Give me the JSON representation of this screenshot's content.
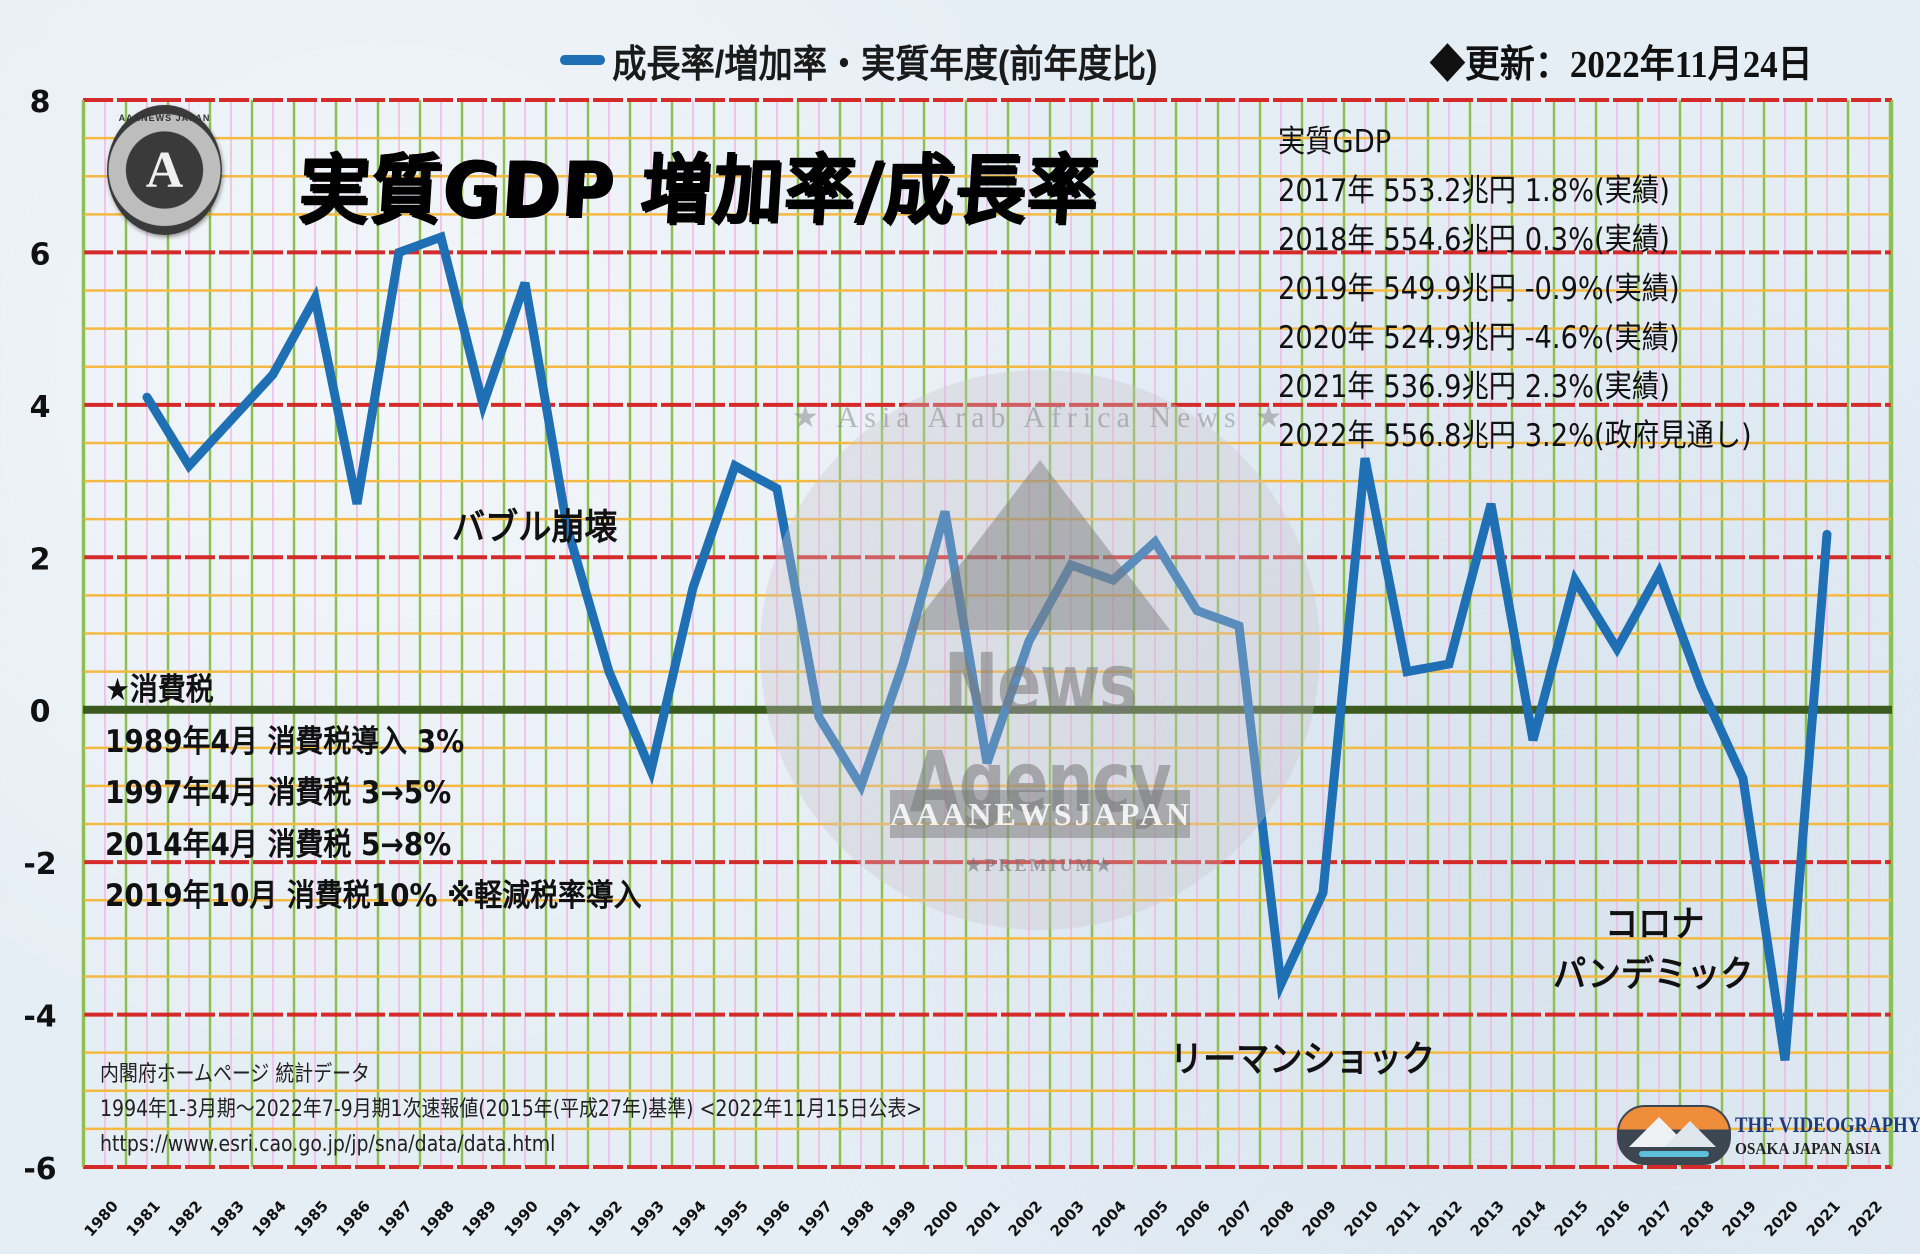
{
  "header": {
    "legend_label": "成長率/増加率・実質年度(前年度比)",
    "legend_color": "#1f6fb5",
    "updated": "◆更新：2022年11月24日"
  },
  "title": "実質GDP 増加率/成長率",
  "logo": {
    "name": "AAANEWS JAPAN",
    "letter": "A",
    "ring_text": "AAANEWS JAPAN"
  },
  "gdp_box": {
    "heading": "実質GDP",
    "rows": [
      "2017年 553.2兆円 1.8%(実績)",
      "2018年 554.6兆円 0.3%(実績)",
      "2019年 549.9兆円 -0.9%(実績)",
      "2020年 524.9兆円 -4.6%(実績)",
      "2021年 536.9兆円 2.3%(実績)",
      "2022年 556.8兆円 3.2%(政府見通し)"
    ]
  },
  "tax_box": {
    "heading": "★消費税",
    "rows": [
      "1989年4月 消費税導入 3%",
      "1997年4月 消費税 3→5%",
      "2014年4月 消費税 5→8%",
      "2019年10月 消費税10% ※軽減税率導入"
    ]
  },
  "annotations": {
    "bubble": "バブル崩壊",
    "lehman": "リーマンショック",
    "corona_1": "コロナ",
    "corona_2": "パンデミック"
  },
  "source": {
    "line1": "内閣府ホームページ 統計データ",
    "line2": "1994年1-3月期～2022年7-9月期1次速報値(2015年(平成27年)基準) <2022年11月15日公表>",
    "line3": "https://www.esri.cao.go.jp/jp/sna/data/data.html"
  },
  "watermark": {
    "arc_text": "★ Asia Arab Africa News ★",
    "main": "News Agency",
    "ribbon": "AAANEWSJAPAN",
    "premium": "★PREMIUM★"
  },
  "videography": {
    "line1": "THE VIDEOGRAPHY",
    "line2": "OSAKA JAPAN ASIA"
  },
  "colors": {
    "series": "#1f6fb5",
    "major_grid": "#d42a2a",
    "minor_grid_h": "#f4b942",
    "vertical_major": "#8cc152",
    "vertical_minor": "#f0b6e6",
    "zero_line": "#3a5a1e"
  },
  "chart_data": {
    "type": "line",
    "title": "実質GDP 増加率/成長率",
    "legend": [
      "成長率/増加率・実質年度(前年度比)"
    ],
    "xlabel": "",
    "ylabel": "",
    "ylim": [
      -6,
      8
    ],
    "yticks": [
      8,
      6,
      4,
      2,
      0,
      -2,
      -4,
      -6
    ],
    "grid": true,
    "x_tick_labels": [
      "1980",
      "1981",
      "1982",
      "1983",
      "1984",
      "1985",
      "1986",
      "1987",
      "1988",
      "1989",
      "1990",
      "1991",
      "1992",
      "1993",
      "1994",
      "1995",
      "1996",
      "1997",
      "1998",
      "1999",
      "2000",
      "2001",
      "2002",
      "2003",
      "2004",
      "2005",
      "2006",
      "2007",
      "2008",
      "2009",
      "2010",
      "2011",
      "2012",
      "2013",
      "2014",
      "2015",
      "2016",
      "2017",
      "2018",
      "2019",
      "2020",
      "2021",
      "2022"
    ],
    "series": [
      {
        "name": "成長率/増加率・実質年度(前年度比)",
        "x": [
          1981,
          1982,
          1983,
          1984,
          1985,
          1986,
          1987,
          1988,
          1989,
          1990,
          1991,
          1992,
          1993,
          1994,
          1995,
          1996,
          1997,
          1998,
          1999,
          2000,
          2001,
          2002,
          2003,
          2004,
          2005,
          2006,
          2007,
          2008,
          2009,
          2010,
          2011,
          2012,
          2013,
          2014,
          2015,
          2016,
          2017,
          2018,
          2019,
          2020,
          2021
        ],
        "values": [
          4.1,
          3.2,
          3.8,
          4.4,
          5.4,
          2.7,
          6.0,
          6.2,
          4.0,
          5.6,
          2.4,
          0.5,
          -0.8,
          1.6,
          3.2,
          2.9,
          -0.1,
          -1.0,
          0.6,
          2.6,
          -0.7,
          0.9,
          1.9,
          1.7,
          2.2,
          1.3,
          1.1,
          -3.6,
          -2.4,
          3.3,
          0.5,
          0.6,
          2.7,
          -0.4,
          1.7,
          0.8,
          1.8,
          0.3,
          -0.9,
          -4.6,
          2.3
        ]
      }
    ],
    "annotations": [
      "バブル崩壊",
      "リーマンショック",
      "コロナ パンデミック"
    ]
  }
}
